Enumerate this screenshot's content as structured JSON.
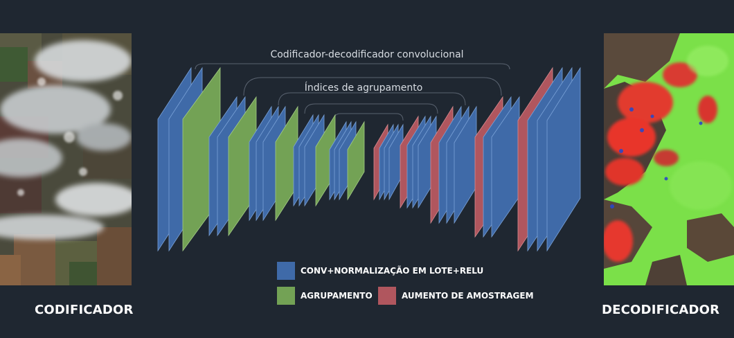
{
  "labels": {
    "encoder": "CODIFICADOR",
    "decoder": "DECODIFICADOR"
  },
  "brackets": {
    "outer": "Codificador-decodificador convolucional",
    "inner": "Índices de agrupamento"
  },
  "legend": {
    "conv": "CONV+NORMALIZAÇÃO EM LOTE+RELU",
    "pool": "AGRUPAMENTO",
    "up": "AUMENTO DE AMOSTRAGEM"
  },
  "colors": {
    "background": "#1f2731",
    "conv": "#3f6aa8",
    "pool": "#73a255",
    "up": "#b0565e"
  }
}
